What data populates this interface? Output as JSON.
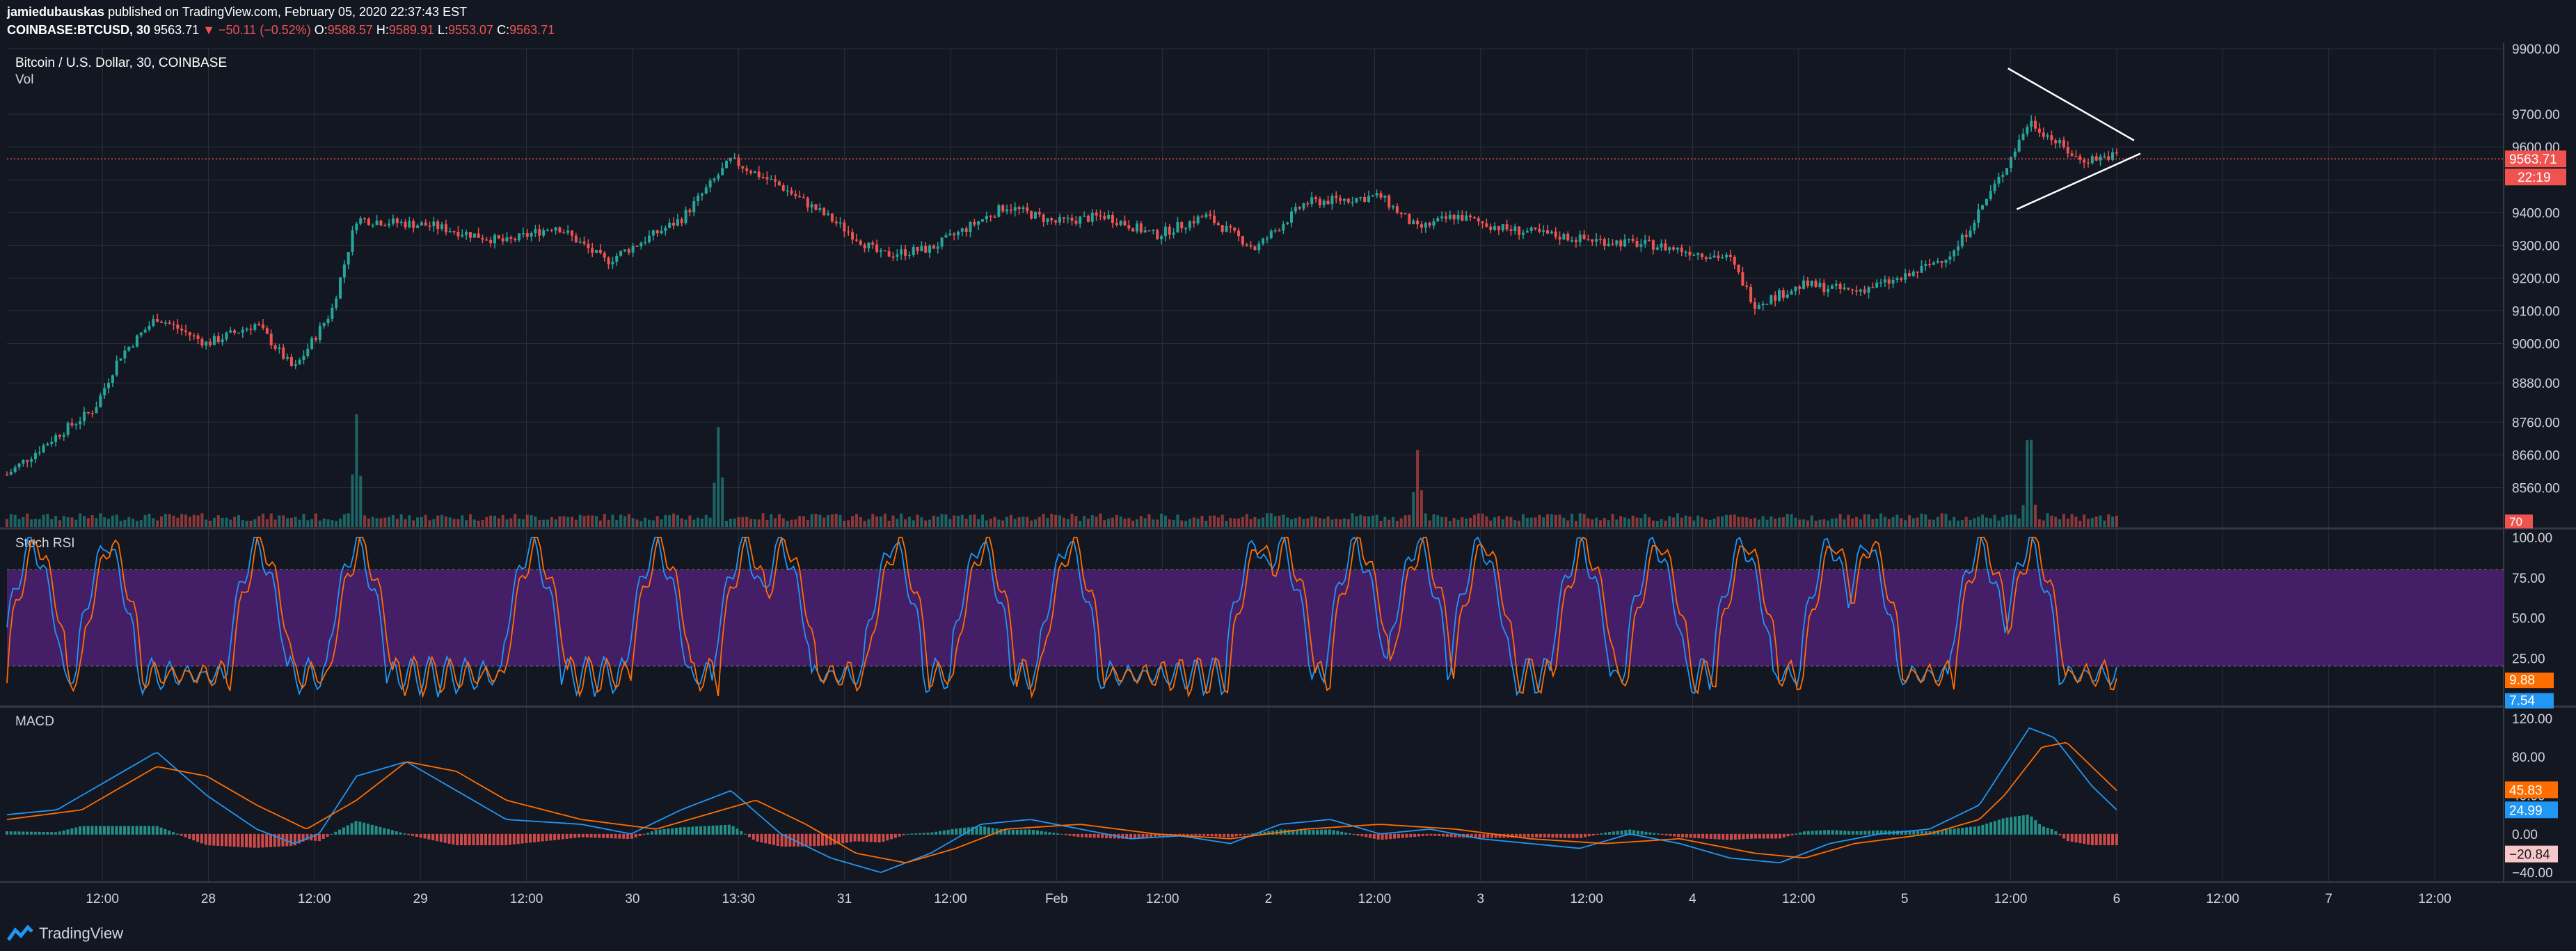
{
  "header": {
    "author": "jamiedubauskas",
    "published_text": "published on TradingView.com, February 05, 2020 22:37:43 EST",
    "symbol": "COINBASE:BTCUSD, 30",
    "last": "9563.71",
    "change": "−50.11 (−0.52%)",
    "o_label": "O:",
    "o": "9588.57",
    "h_label": "H:",
    "h": "9589.91",
    "l_label": "L:",
    "l": "9553.07",
    "c_label": "C:",
    "c": "9563.71"
  },
  "footer": {
    "brand": "TradingView"
  },
  "colors": {
    "background": "#131722",
    "grid": "#2a2e39",
    "text": "#d1d4dc",
    "up": "#26a69a",
    "down": "#ef5350",
    "rsi_band": "#4a1f6e",
    "macd": "#2196f3",
    "signal": "#ff6d00"
  },
  "chart_data": [
    {
      "type": "candlestick",
      "title": "Bitcoin / U.S. Dollar, 30, COINBASE",
      "volume_label": "Vol",
      "y_ticks": [
        "9900.00",
        "9700.00",
        "9600.00",
        "9500.00",
        "9400.00",
        "9300.00",
        "9200.00",
        "9100.00",
        "9000.00",
        "8880.00",
        "8760.00",
        "8660.00",
        "8560.00"
      ],
      "ylim": [
        8440,
        9900
      ],
      "x_ticks": [
        "12:00",
        "28",
        "12:00",
        "29",
        "12:00",
        "30",
        "13:30",
        "31",
        "12:00",
        "Feb",
        "12:00",
        "2",
        "12:00",
        "3",
        "12:00",
        "4",
        "12:00",
        "5",
        "12:00",
        "6",
        "12:00",
        "7",
        "12:00"
      ],
      "price_path": [
        [
          0,
          8600
        ],
        [
          0.02,
          8720
        ],
        [
          0.035,
          8800
        ],
        [
          0.045,
          8960
        ],
        [
          0.06,
          9080
        ],
        [
          0.08,
          9000
        ],
        [
          0.1,
          9060
        ],
        [
          0.115,
          8920
        ],
        [
          0.13,
          9100
        ],
        [
          0.14,
          9380
        ],
        [
          0.17,
          9360
        ],
        [
          0.2,
          9310
        ],
        [
          0.22,
          9360
        ],
        [
          0.24,
          9250
        ],
        [
          0.27,
          9380
        ],
        [
          0.29,
          9560
        ],
        [
          0.31,
          9480
        ],
        [
          0.33,
          9380
        ],
        [
          0.35,
          9270
        ],
        [
          0.37,
          9290
        ],
        [
          0.4,
          9420
        ],
        [
          0.42,
          9370
        ],
        [
          0.44,
          9390
        ],
        [
          0.46,
          9330
        ],
        [
          0.48,
          9390
        ],
        [
          0.5,
          9290
        ],
        [
          0.52,
          9430
        ],
        [
          0.55,
          9450
        ],
        [
          0.565,
          9350
        ],
        [
          0.58,
          9390
        ],
        [
          0.6,
          9350
        ],
        [
          0.63,
          9320
        ],
        [
          0.66,
          9300
        ],
        [
          0.69,
          9260
        ],
        [
          0.7,
          9120
        ],
        [
          0.72,
          9180
        ],
        [
          0.74,
          9160
        ],
        [
          0.76,
          9200
        ],
        [
          0.78,
          9280
        ],
        [
          0.8,
          9530
        ],
        [
          0.81,
          9680
        ],
        [
          0.83,
          9560
        ],
        [
          0.845,
          9575
        ]
      ],
      "last_price": "9563.71",
      "countdown": "22:19",
      "volume_spikes": [
        [
          0.14,
          0.74
        ],
        [
          0.285,
          0.67
        ],
        [
          0.565,
          0.51
        ],
        [
          0.81,
          0.78
        ]
      ],
      "vol_axis_label": "70",
      "triangle_lines": [
        [
          [
            0.8015,
            9840
          ],
          [
            0.852,
            9620
          ]
        ],
        [
          [
            0.805,
            9410
          ],
          [
            0.8545,
            9580
          ]
        ]
      ]
    },
    {
      "type": "line",
      "title": "Stoch RSI",
      "ylim": [
        0,
        100
      ],
      "y_ticks": [
        "100.00",
        "75.00",
        "50.00",
        "25.00",
        "0.00"
      ],
      "band": [
        20,
        80
      ],
      "k_last": "9.88",
      "d_last": "7.54",
      "cycle_centers": [
        0.01,
        0.04,
        0.1,
        0.14,
        0.21,
        0.26,
        0.295,
        0.31,
        0.355,
        0.39,
        0.425,
        0.5,
        0.51,
        0.54,
        0.565,
        0.59,
        0.63,
        0.66,
        0.695,
        0.73,
        0.745,
        0.79,
        0.81
      ]
    },
    {
      "type": "line",
      "title": "MACD",
      "ylim": [
        -50,
        130
      ],
      "y_ticks": [
        "120.00",
        "80.00",
        "40.00",
        "0.00",
        "−40.00"
      ],
      "macd_last": "24.99",
      "signal_last": "45.83",
      "hist_last": "−20.84",
      "macd_path": [
        [
          0,
          20
        ],
        [
          0.02,
          25
        ],
        [
          0.04,
          55
        ],
        [
          0.06,
          85
        ],
        [
          0.08,
          40
        ],
        [
          0.1,
          5
        ],
        [
          0.115,
          -10
        ],
        [
          0.125,
          0
        ],
        [
          0.14,
          60
        ],
        [
          0.16,
          75
        ],
        [
          0.18,
          45
        ],
        [
          0.2,
          15
        ],
        [
          0.23,
          10
        ],
        [
          0.25,
          0
        ],
        [
          0.27,
          25
        ],
        [
          0.29,
          45
        ],
        [
          0.31,
          0
        ],
        [
          0.33,
          -25
        ],
        [
          0.35,
          -40
        ],
        [
          0.37,
          -20
        ],
        [
          0.39,
          10
        ],
        [
          0.41,
          15
        ],
        [
          0.43,
          5
        ],
        [
          0.45,
          -5
        ],
        [
          0.47,
          -2
        ],
        [
          0.49,
          -10
        ],
        [
          0.51,
          10
        ],
        [
          0.53,
          15
        ],
        [
          0.55,
          0
        ],
        [
          0.57,
          5
        ],
        [
          0.59,
          -5
        ],
        [
          0.61,
          -10
        ],
        [
          0.63,
          -15
        ],
        [
          0.65,
          0
        ],
        [
          0.67,
          -10
        ],
        [
          0.69,
          -25
        ],
        [
          0.71,
          -30
        ],
        [
          0.73,
          -10
        ],
        [
          0.75,
          0
        ],
        [
          0.77,
          5
        ],
        [
          0.79,
          30
        ],
        [
          0.8,
          70
        ],
        [
          0.81,
          110
        ],
        [
          0.82,
          100
        ],
        [
          0.835,
          50
        ],
        [
          0.845,
          25
        ]
      ],
      "signal_path": [
        [
          0,
          15
        ],
        [
          0.03,
          25
        ],
        [
          0.06,
          70
        ],
        [
          0.08,
          60
        ],
        [
          0.1,
          30
        ],
        [
          0.12,
          5
        ],
        [
          0.14,
          35
        ],
        [
          0.16,
          75
        ],
        [
          0.18,
          65
        ],
        [
          0.2,
          35
        ],
        [
          0.23,
          15
        ],
        [
          0.26,
          5
        ],
        [
          0.28,
          20
        ],
        [
          0.3,
          35
        ],
        [
          0.32,
          10
        ],
        [
          0.34,
          -20
        ],
        [
          0.36,
          -30
        ],
        [
          0.38,
          -15
        ],
        [
          0.4,
          5
        ],
        [
          0.43,
          10
        ],
        [
          0.46,
          0
        ],
        [
          0.49,
          -5
        ],
        [
          0.52,
          5
        ],
        [
          0.55,
          10
        ],
        [
          0.58,
          5
        ],
        [
          0.61,
          -5
        ],
        [
          0.64,
          -10
        ],
        [
          0.67,
          -5
        ],
        [
          0.7,
          -20
        ],
        [
          0.72,
          -25
        ],
        [
          0.74,
          -10
        ],
        [
          0.77,
          0
        ],
        [
          0.79,
          15
        ],
        [
          0.8,
          40
        ],
        [
          0.815,
          90
        ],
        [
          0.825,
          95
        ],
        [
          0.835,
          70
        ],
        [
          0.845,
          45
        ]
      ]
    }
  ]
}
